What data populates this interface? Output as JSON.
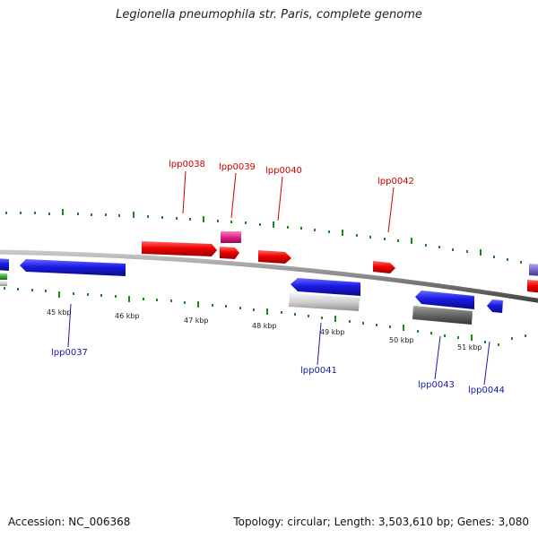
{
  "title": "Legionella pneumophila str. Paris, complete genome",
  "footer": {
    "accession": "Accession: NC_006368",
    "summary": "Topology: circular; Length: 3,503,610 bp; Genes: 3,080"
  },
  "ruler_labels": [
    {
      "text": "45 kbp"
    },
    {
      "text": "46 kbp"
    },
    {
      "text": "47 kbp"
    },
    {
      "text": "48 kbp"
    },
    {
      "text": "49 kbp"
    },
    {
      "text": "50 kbp"
    },
    {
      "text": "51 kbp"
    }
  ],
  "gene_labels_forward": [
    {
      "text": "lpp0038"
    },
    {
      "text": "lpp0039"
    },
    {
      "text": "lpp0040"
    },
    {
      "text": "lpp0042"
    }
  ],
  "gene_labels_reverse": [
    {
      "text": "lpp0037"
    },
    {
      "text": "lpp0041"
    },
    {
      "text": "lpp0043"
    },
    {
      "text": "lpp0044"
    }
  ],
  "colors": {
    "forward_label": "#cc0000",
    "reverse_label": "#1a1aaa",
    "forward_gene": "#ee0000",
    "reverse_gene": "#1a1ae6",
    "tick": "#1a8a1a",
    "backbone": "#888888",
    "pink_feature": "#e0208a",
    "gray_feature_light": "#cfcfcf",
    "gray_feature_dark": "#666666",
    "purple_feature": "#7a66cc",
    "green_feature": "#33aa33"
  }
}
